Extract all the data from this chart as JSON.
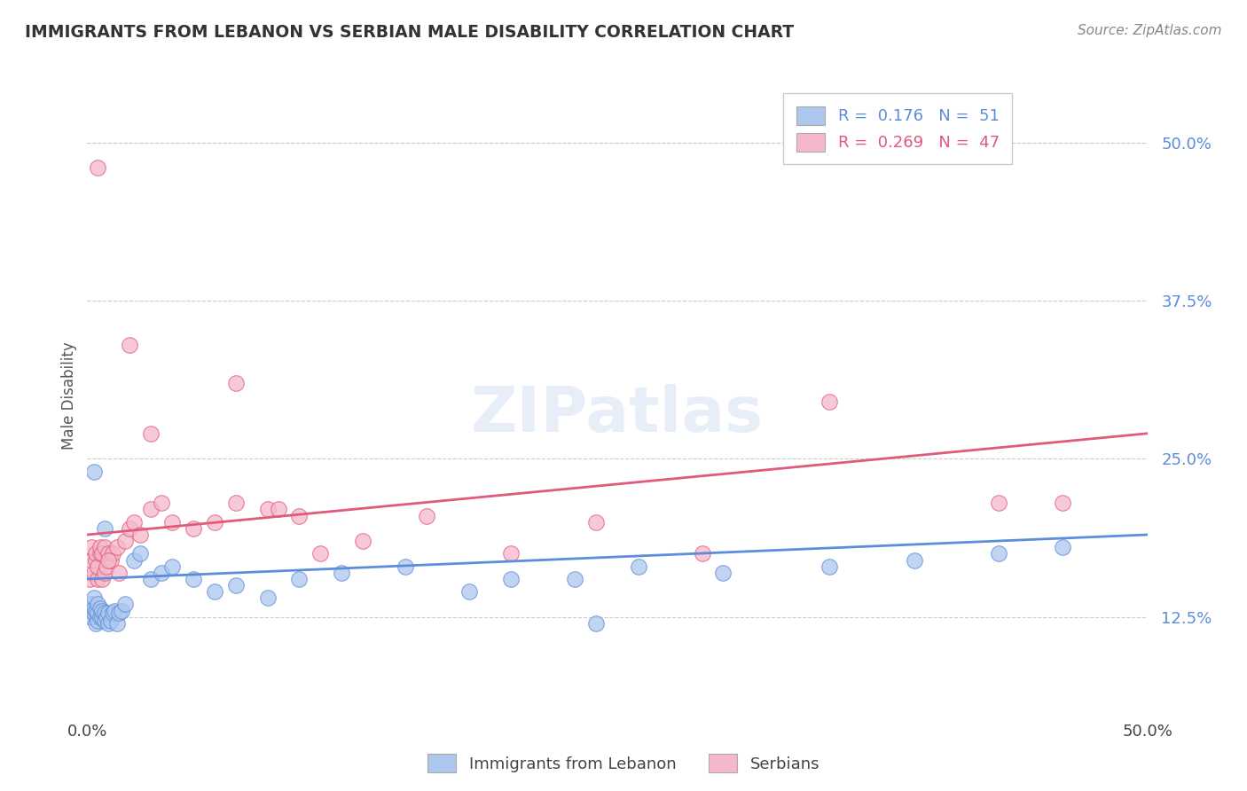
{
  "title": "IMMIGRANTS FROM LEBANON VS SERBIAN MALE DISABILITY CORRELATION CHART",
  "source": "Source: ZipAtlas.com",
  "ylabel": "Male Disability",
  "xlim": [
    0.0,
    0.5
  ],
  "ylim": [
    0.05,
    0.55
  ],
  "yticks": [
    0.125,
    0.25,
    0.375,
    0.5
  ],
  "ytick_labels": [
    "12.5%",
    "25.0%",
    "37.5%",
    "50.0%"
  ],
  "xticks": [
    0.0,
    0.5
  ],
  "xtick_labels": [
    "0.0%",
    "50.0%"
  ],
  "blue_color": "#adc8ef",
  "pink_color": "#f5b8cb",
  "blue_line_color": "#5b8dd9",
  "pink_line_color": "#e05a7a",
  "R_blue": 0.176,
  "N_blue": 51,
  "R_pink": 0.269,
  "N_pink": 47,
  "legend_blue": "Immigrants from Lebanon",
  "legend_pink": "Serbians",
  "blue_x": [
    0.001,
    0.002,
    0.002,
    0.003,
    0.003,
    0.003,
    0.004,
    0.004,
    0.005,
    0.005,
    0.005,
    0.006,
    0.006,
    0.007,
    0.007,
    0.008,
    0.008,
    0.009,
    0.01,
    0.01,
    0.011,
    0.012,
    0.013,
    0.014,
    0.015,
    0.016,
    0.018,
    0.022,
    0.025,
    0.03,
    0.035,
    0.04,
    0.05,
    0.06,
    0.07,
    0.085,
    0.1,
    0.12,
    0.15,
    0.18,
    0.2,
    0.23,
    0.26,
    0.3,
    0.35,
    0.39,
    0.43,
    0.46,
    0.003,
    0.008,
    0.24
  ],
  "blue_y": [
    0.13,
    0.125,
    0.135,
    0.128,
    0.132,
    0.14,
    0.12,
    0.13,
    0.122,
    0.128,
    0.135,
    0.125,
    0.132,
    0.125,
    0.13,
    0.122,
    0.128,
    0.125,
    0.12,
    0.128,
    0.122,
    0.128,
    0.13,
    0.12,
    0.128,
    0.13,
    0.135,
    0.17,
    0.175,
    0.155,
    0.16,
    0.165,
    0.155,
    0.145,
    0.15,
    0.14,
    0.155,
    0.16,
    0.165,
    0.145,
    0.155,
    0.155,
    0.165,
    0.16,
    0.165,
    0.17,
    0.175,
    0.18,
    0.24,
    0.195,
    0.12
  ],
  "pink_x": [
    0.001,
    0.002,
    0.002,
    0.003,
    0.004,
    0.004,
    0.005,
    0.005,
    0.006,
    0.006,
    0.007,
    0.007,
    0.008,
    0.008,
    0.009,
    0.01,
    0.011,
    0.012,
    0.014,
    0.015,
    0.018,
    0.02,
    0.022,
    0.025,
    0.03,
    0.035,
    0.04,
    0.05,
    0.06,
    0.07,
    0.085,
    0.1,
    0.13,
    0.16,
    0.2,
    0.24,
    0.35,
    0.43,
    0.005,
    0.01,
    0.02,
    0.03,
    0.07,
    0.09,
    0.11,
    0.29,
    0.46
  ],
  "pink_y": [
    0.155,
    0.17,
    0.18,
    0.16,
    0.17,
    0.175,
    0.155,
    0.165,
    0.175,
    0.18,
    0.155,
    0.175,
    0.16,
    0.18,
    0.165,
    0.175,
    0.17,
    0.175,
    0.18,
    0.16,
    0.185,
    0.195,
    0.2,
    0.19,
    0.21,
    0.215,
    0.2,
    0.195,
    0.2,
    0.215,
    0.21,
    0.205,
    0.185,
    0.205,
    0.175,
    0.2,
    0.295,
    0.215,
    0.48,
    0.17,
    0.34,
    0.27,
    0.31,
    0.21,
    0.175,
    0.175,
    0.215
  ],
  "blue_trend": [
    0.155,
    0.19
  ],
  "pink_trend": [
    0.19,
    0.27
  ],
  "watermark": "ZIPatlas",
  "watermark_color": "#d0dff0"
}
